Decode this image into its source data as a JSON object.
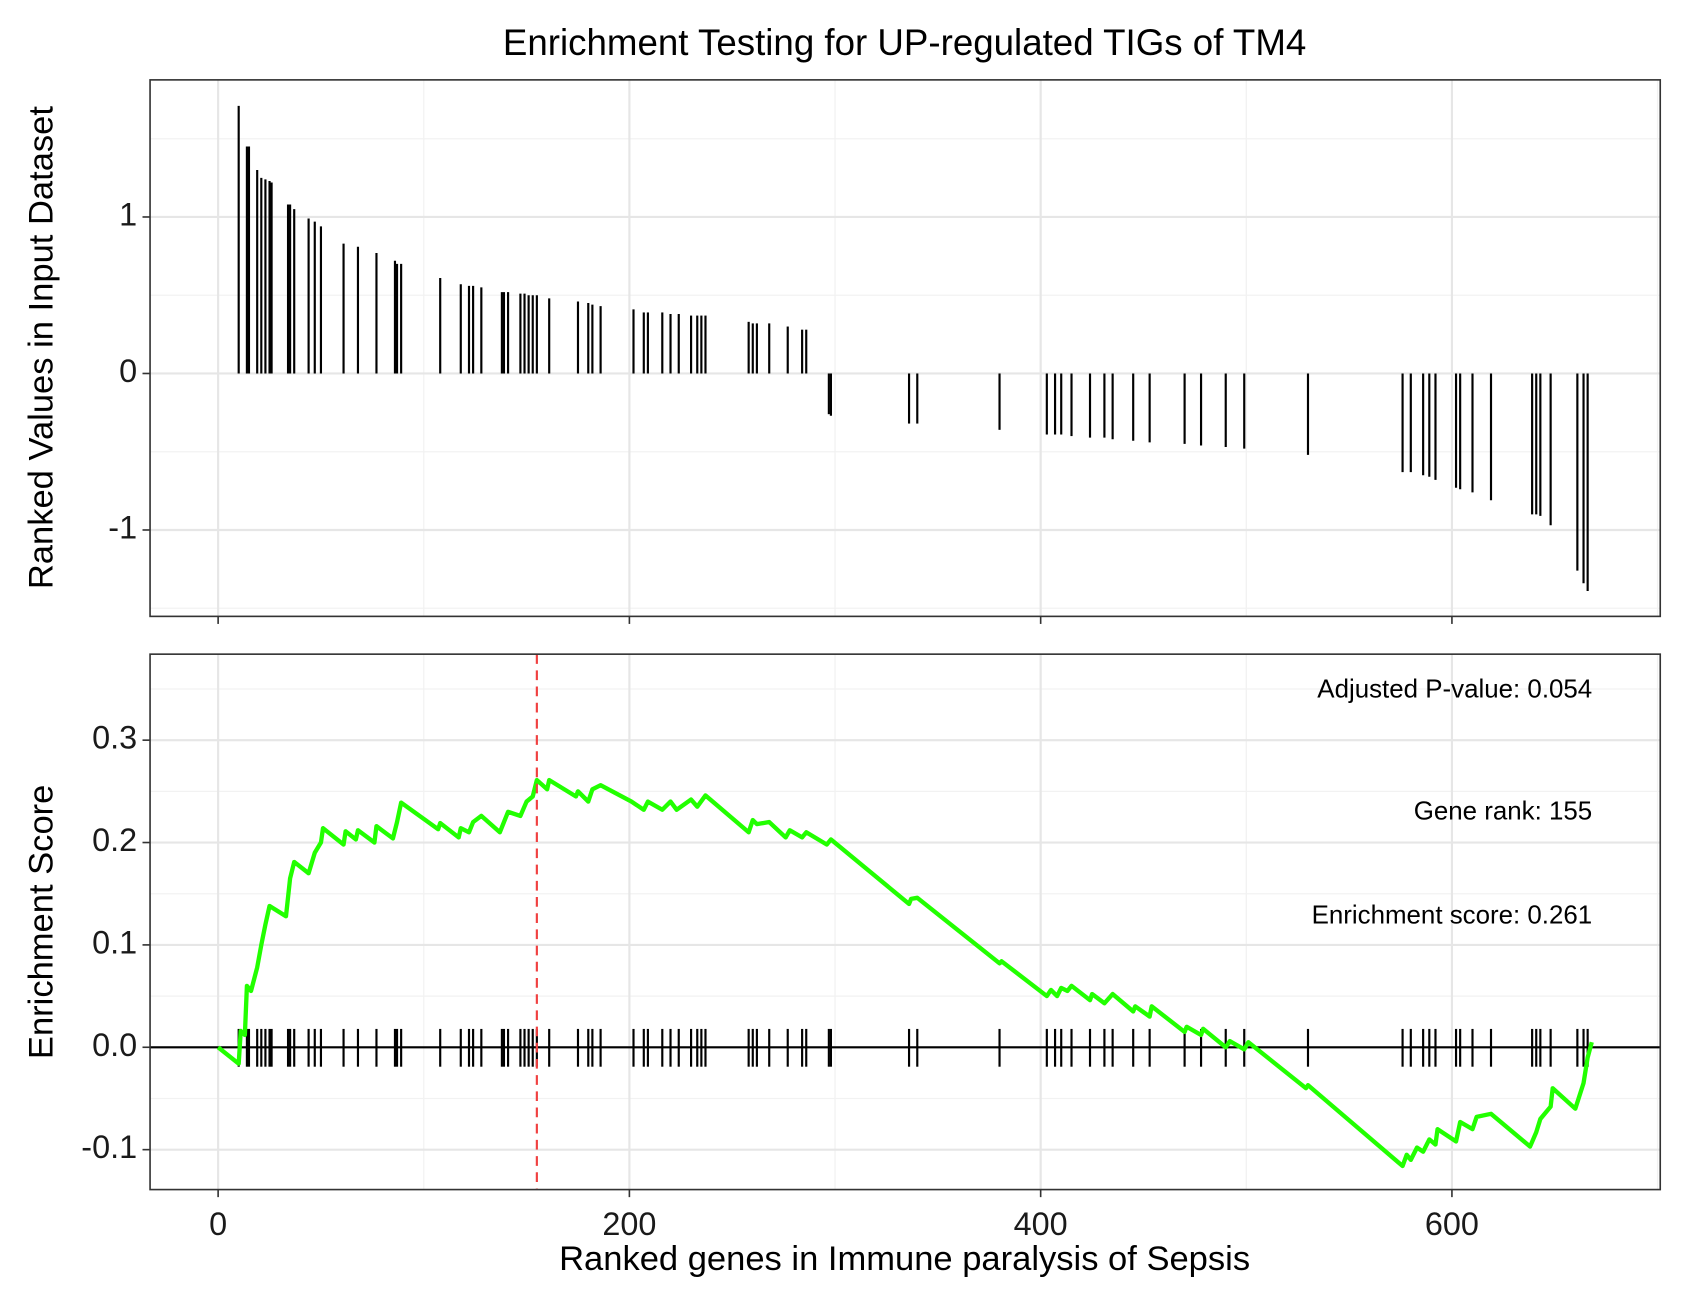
{
  "chart_data": [
    {
      "type": "bar",
      "title": "Enrichment Testing for UP-regulated TIGs of TM4",
      "y_label": "Ranked Values in Input Dataset",
      "x": [
        10,
        14,
        15,
        19,
        21,
        23,
        25,
        26,
        34,
        35,
        37,
        44,
        47,
        50,
        61,
        68,
        77,
        86,
        87,
        89,
        108,
        118,
        122,
        124,
        128,
        138,
        139,
        141,
        147,
        149,
        151,
        153,
        155,
        161,
        175,
        180,
        182,
        186,
        202,
        207,
        209,
        216,
        220,
        224,
        230,
        233,
        235,
        237,
        258,
        260,
        262,
        268,
        277,
        284,
        286,
        297,
        298,
        336,
        340,
        380,
        403,
        407,
        410,
        415,
        424,
        431,
        435,
        445,
        453,
        470,
        478,
        490,
        499,
        530,
        576,
        580,
        586,
        589,
        592,
        602,
        604,
        610,
        619,
        639,
        641,
        643,
        648,
        661,
        664,
        666
      ],
      "values": [
        1.71,
        1.45,
        1.45,
        1.3,
        1.25,
        1.24,
        1.23,
        1.22,
        1.08,
        1.08,
        1.05,
        0.99,
        0.97,
        0.94,
        0.83,
        0.81,
        0.77,
        0.72,
        0.7,
        0.7,
        0.61,
        0.57,
        0.56,
        0.56,
        0.55,
        0.52,
        0.52,
        0.52,
        0.51,
        0.51,
        0.5,
        0.5,
        0.5,
        0.48,
        0.46,
        0.45,
        0.44,
        0.43,
        0.41,
        0.39,
        0.39,
        0.39,
        0.38,
        0.38,
        0.37,
        0.37,
        0.37,
        0.37,
        0.33,
        0.32,
        0.32,
        0.32,
        0.3,
        0.28,
        0.28,
        -0.26,
        -0.27,
        -0.32,
        -0.32,
        -0.36,
        -0.39,
        -0.39,
        -0.39,
        -0.4,
        -0.41,
        -0.41,
        -0.42,
        -0.43,
        -0.44,
        -0.45,
        -0.46,
        -0.47,
        -0.48,
        -0.52,
        -0.63,
        -0.63,
        -0.65,
        -0.66,
        -0.68,
        -0.73,
        -0.74,
        -0.76,
        -0.81,
        -0.9,
        -0.9,
        -0.91,
        -0.97,
        -1.26,
        -1.34,
        -1.39
      ],
      "color": "#000000",
      "xlim": [
        -33.1,
        701.3
      ],
      "ylim": [
        -1.552,
        1.876
      ],
      "xticks": [
        0,
        200,
        400,
        600
      ],
      "yticks": [
        -1,
        0,
        1
      ],
      "show_x_tick_labels": false,
      "grid": true
    },
    {
      "type": "line",
      "y_label": "Enrichment Score",
      "x_label": "Ranked genes in Immune paralysis of Sepsis",
      "x": [
        0,
        10,
        11,
        13,
        14,
        16,
        19,
        21,
        23,
        25,
        33,
        35,
        37,
        44,
        47,
        50,
        51,
        61,
        62,
        67,
        68,
        76,
        77,
        85,
        87,
        89,
        107,
        108,
        117,
        118,
        122,
        124,
        128,
        137,
        139,
        141,
        147,
        150,
        153,
        155,
        160,
        161,
        174,
        175,
        180,
        182,
        186,
        201,
        207,
        209,
        216,
        220,
        223,
        230,
        233,
        237,
        258,
        260,
        262,
        268,
        276,
        278,
        284,
        286,
        296,
        298,
        336,
        337,
        340,
        380,
        381,
        403,
        405,
        408,
        410,
        413,
        415,
        424,
        425,
        431,
        435,
        445,
        446,
        453,
        454,
        470,
        471,
        478,
        479,
        490,
        492,
        499,
        501,
        529,
        530,
        576,
        578,
        580,
        583,
        586,
        589,
        592,
        593,
        602,
        604,
        610,
        612,
        619,
        638,
        641,
        643,
        648,
        649,
        660,
        664,
        666,
        668
      ],
      "values": [
        0,
        -0.016,
        0.016,
        0.012,
        0.06,
        0.055,
        0.078,
        0.1,
        0.12,
        0.138,
        0.128,
        0.165,
        0.181,
        0.17,
        0.19,
        0.2,
        0.214,
        0.198,
        0.211,
        0.203,
        0.212,
        0.2,
        0.216,
        0.204,
        0.22,
        0.239,
        0.213,
        0.219,
        0.205,
        0.214,
        0.21,
        0.22,
        0.226,
        0.21,
        0.22,
        0.23,
        0.226,
        0.24,
        0.245,
        0.261,
        0.252,
        0.261,
        0.245,
        0.25,
        0.24,
        0.252,
        0.256,
        0.24,
        0.232,
        0.24,
        0.232,
        0.24,
        0.232,
        0.242,
        0.235,
        0.246,
        0.21,
        0.222,
        0.218,
        0.22,
        0.205,
        0.212,
        0.205,
        0.21,
        0.198,
        0.203,
        0.14,
        0.145,
        0.146,
        0.082,
        0.084,
        0.05,
        0.056,
        0.05,
        0.058,
        0.055,
        0.06,
        0.046,
        0.052,
        0.043,
        0.052,
        0.035,
        0.04,
        0.03,
        0.04,
        0.015,
        0.02,
        0.012,
        0.018,
        0,
        0.006,
        -0.002,
        0.005,
        -0.04,
        -0.037,
        -0.116,
        -0.105,
        -0.11,
        -0.098,
        -0.102,
        -0.09,
        -0.095,
        -0.08,
        -0.092,
        -0.073,
        -0.08,
        -0.068,
        -0.065,
        -0.097,
        -0.083,
        -0.07,
        -0.058,
        -0.04,
        -0.06,
        -0.035,
        -0.01,
        0.005
      ],
      "color": "#22ff00",
      "xlim": [
        -33.1,
        701.3
      ],
      "ylim": [
        -0.139,
        0.384
      ],
      "xticks": [
        0,
        200,
        400,
        600
      ],
      "yticks": [
        -0.1,
        {
          "value": 0,
          "label": "0.0"
        },
        0.1,
        0.2,
        0.3
      ],
      "show_x_tick_labels": true,
      "grid": true,
      "rug": true,
      "marker_line": {
        "x": 155,
        "color": "#f04040"
      },
      "annotations": [
        "Adjusted P-value: 0.054",
        "Gene rank: 155",
        "Enrichment score: 0.261"
      ]
    }
  ]
}
